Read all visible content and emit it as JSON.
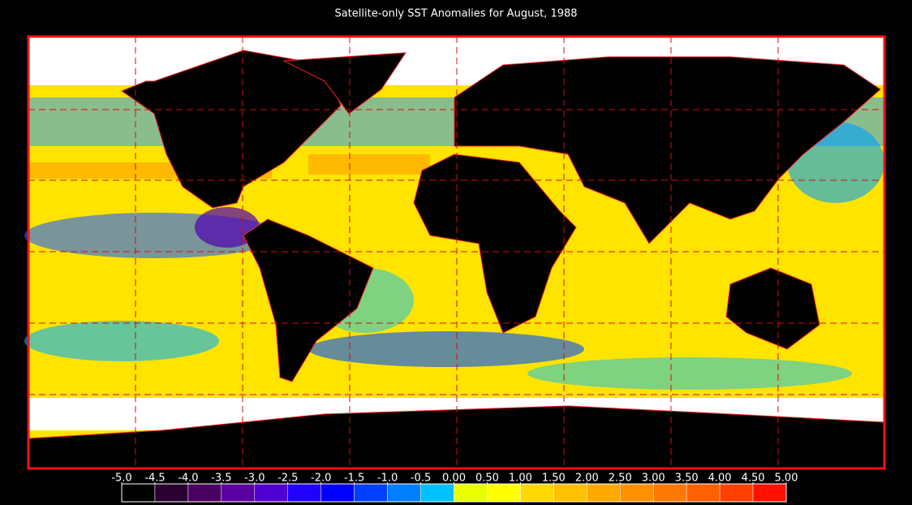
{
  "title": "Satellite-only SST Anomalies for August, 1988",
  "colorbar": {
    "ticks": [
      {
        "value": -5,
        "label": "-5.0"
      },
      {
        "value": -4.5,
        "label": "-4.5"
      },
      {
        "value": -4,
        "label": "-4.0"
      },
      {
        "value": -3.5,
        "label": "-3.5"
      },
      {
        "value": -3,
        "label": "-3.0"
      },
      {
        "value": -2.5,
        "label": "-2.5"
      },
      {
        "value": -2,
        "label": "-2.0"
      },
      {
        "value": -1.5,
        "label": "-1.5"
      },
      {
        "value": -1,
        "label": "-1.0"
      },
      {
        "value": -0.5,
        "label": "-0.5"
      },
      {
        "value": 0,
        "label": "0.00"
      },
      {
        "value": 0.5,
        "label": "0.50"
      },
      {
        "value": 1,
        "label": "1.00"
      },
      {
        "value": 1.5,
        "label": "1.50"
      },
      {
        "value": 2,
        "label": "2.00"
      },
      {
        "value": 2.5,
        "label": "2.50"
      },
      {
        "value": 3,
        "label": "3.00"
      },
      {
        "value": 3.5,
        "label": "3.50"
      },
      {
        "value": 4,
        "label": "4.00"
      },
      {
        "value": 4.5,
        "label": "4.50"
      },
      {
        "value": 5,
        "label": "5.00"
      }
    ],
    "colors": [
      "#000000",
      "#2a0030",
      "#4a0060",
      "#5a00a0",
      "#5000d0",
      "#2000ff",
      "#0000ff",
      "#0040ff",
      "#0080ff",
      "#00c0ff",
      "#e8ff00",
      "#ffff00",
      "#ffd800",
      "#ffc000",
      "#ffa800",
      "#ff9000",
      "#ff7800",
      "#ff6000",
      "#ff4000",
      "#ff1000"
    ]
  }
}
